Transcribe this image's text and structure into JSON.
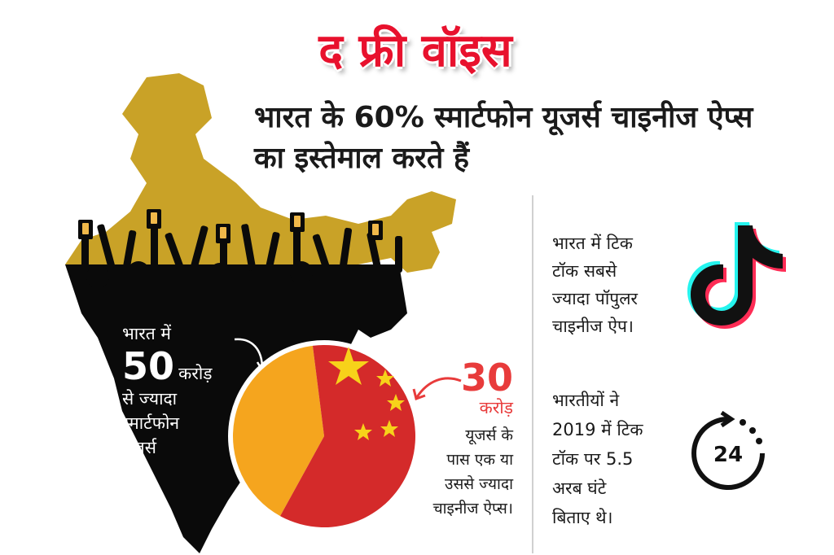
{
  "brand": {
    "name": "द फ्री वॉइस",
    "color": "#e8112d"
  },
  "headline": {
    "line1": "भारत के 60% स्मार्टफोन यूजर्स चाइनीज ऐप्स",
    "line2": "का इस्तेमाल करते हैं"
  },
  "map": {
    "north_color": "#c9a227",
    "south_color": "#0a0a0a"
  },
  "india_users": {
    "prefix": "भारत में",
    "number": "50",
    "unit": "करोड़",
    "suffix_line1": "से ज्यादा",
    "suffix_line2": "स्मार्टफोन",
    "suffix_line3": "यूजर्स",
    "pie_color": "#f5a51e"
  },
  "chinese_app_users": {
    "number": "30",
    "unit": "करोड़",
    "desc_line1": "यूजर्स के",
    "desc_line2": "पास एक या",
    "desc_line3": "उससे ज्यादा",
    "desc_line4": "चाइनीज ऐप्स।",
    "pie_color": "#d42a2a",
    "share_percent": 60
  },
  "facts": [
    {
      "line1": "भारत में टिक",
      "line2": "टॉक सबसे",
      "line3": "ज्यादा पॉपुलर",
      "line4": "चाइनीज ऐप।",
      "icon": "tiktok-logo-icon"
    },
    {
      "line1": "भारतीयों ने",
      "line2": "2019 में टिक",
      "line3": "टॉक पर 5.5",
      "line4": "अरब घंटे",
      "line5": "बिताए थे।",
      "icon": "clock-24-icon"
    }
  ],
  "clock_label": "24"
}
